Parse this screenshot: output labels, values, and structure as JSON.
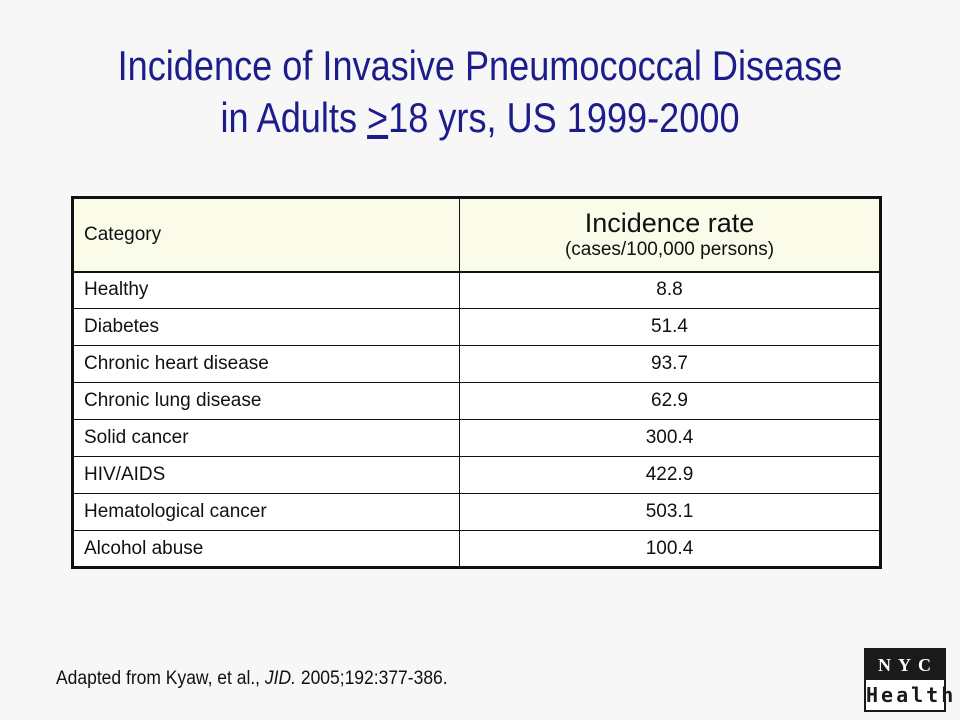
{
  "title": {
    "line1": "Incidence of Invasive Pneumococcal Disease",
    "line2_prefix": "in Adults ",
    "line2_underlined": ">",
    "line2_suffix": "18 yrs, US 1999-2000"
  },
  "table": {
    "header_category": "Category",
    "header_rate": "Incidence rate",
    "header_rate_unit": "(cases/100,000 persons)",
    "rows": [
      {
        "category": "Healthy",
        "rate": "8.8"
      },
      {
        "category": "Diabetes",
        "rate": "51.4"
      },
      {
        "category": "Chronic heart disease",
        "rate": "93.7"
      },
      {
        "category": "Chronic lung disease",
        "rate": "62.9"
      },
      {
        "category": "Solid cancer",
        "rate": "300.4"
      },
      {
        "category": "HIV/AIDS",
        "rate": "422.9"
      },
      {
        "category": "Hematological cancer",
        "rate": "503.1"
      },
      {
        "category": "Alcohol abuse",
        "rate": "100.4"
      }
    ]
  },
  "citation": {
    "prefix": "Adapted from Kyaw, et al., ",
    "journal": "JID.",
    "suffix": " 2005;192:377-386."
  },
  "logo": {
    "top": "NYC",
    "bottom": "Health"
  },
  "colors": {
    "title": "#1c1c8c",
    "header_bg": "#fbfbea",
    "background": "#f7f7f7"
  }
}
